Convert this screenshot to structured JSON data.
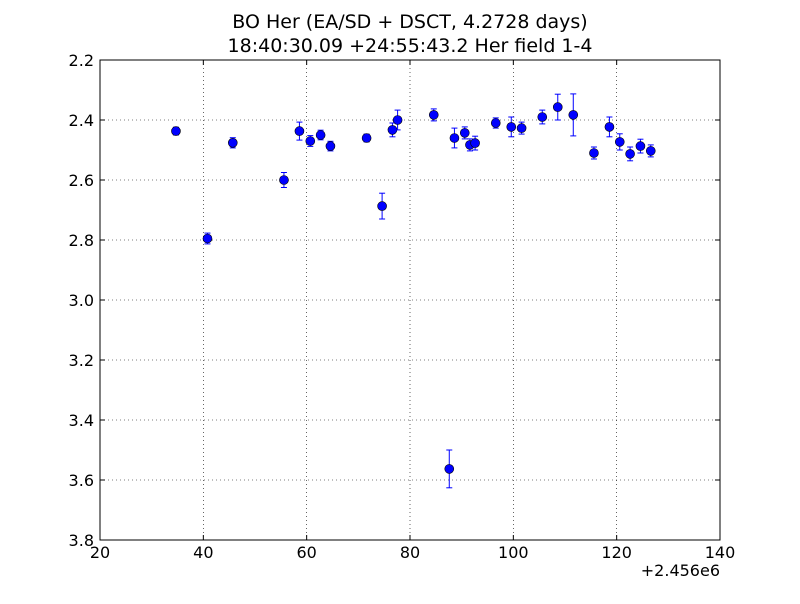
{
  "chart_data": {
    "type": "scatter",
    "title": "BO Her (EA/SD + DSCT, 4.2728 days)",
    "subtitle": "18:40:30.09 +24:55:43.2 Her field 1-4",
    "xlabel": "",
    "ylabel": "",
    "x_offset_label": "+2.456e6",
    "xlim": [
      20,
      140
    ],
    "ylim": [
      3.8,
      2.2
    ],
    "y_inverted": true,
    "grid": true,
    "marker_color": "#0000ff",
    "x_ticks": [
      "20",
      "40",
      "60",
      "80",
      "100",
      "120",
      "140"
    ],
    "y_ticks": [
      "2.2",
      "2.4",
      "2.6",
      "2.8",
      "3.0",
      "3.2",
      "3.4",
      "3.6",
      "3.8"
    ],
    "points": [
      {
        "x": 34.7,
        "y": 2.437,
        "err": 0.013
      },
      {
        "x": 40.8,
        "y": 2.795,
        "err": 0.018
      },
      {
        "x": 45.7,
        "y": 2.476,
        "err": 0.017
      },
      {
        "x": 55.6,
        "y": 2.6,
        "err": 0.025
      },
      {
        "x": 58.6,
        "y": 2.437,
        "err": 0.03
      },
      {
        "x": 60.7,
        "y": 2.47,
        "err": 0.018
      },
      {
        "x": 62.7,
        "y": 2.45,
        "err": 0.016
      },
      {
        "x": 64.6,
        "y": 2.487,
        "err": 0.016
      },
      {
        "x": 71.6,
        "y": 2.46,
        "err": 0.013
      },
      {
        "x": 74.6,
        "y": 2.687,
        "err": 0.043
      },
      {
        "x": 76.6,
        "y": 2.433,
        "err": 0.023
      },
      {
        "x": 77.6,
        "y": 2.4,
        "err": 0.033
      },
      {
        "x": 84.6,
        "y": 2.383,
        "err": 0.02
      },
      {
        "x": 87.6,
        "y": 3.563,
        "err": 0.063
      },
      {
        "x": 88.6,
        "y": 2.46,
        "err": 0.033
      },
      {
        "x": 90.6,
        "y": 2.443,
        "err": 0.02
      },
      {
        "x": 91.6,
        "y": 2.483,
        "err": 0.02
      },
      {
        "x": 92.6,
        "y": 2.477,
        "err": 0.023
      },
      {
        "x": 96.6,
        "y": 2.41,
        "err": 0.017
      },
      {
        "x": 99.6,
        "y": 2.423,
        "err": 0.033
      },
      {
        "x": 101.6,
        "y": 2.427,
        "err": 0.02
      },
      {
        "x": 105.6,
        "y": 2.39,
        "err": 0.023
      },
      {
        "x": 108.6,
        "y": 2.357,
        "err": 0.043
      },
      {
        "x": 111.6,
        "y": 2.383,
        "err": 0.07
      },
      {
        "x": 115.6,
        "y": 2.51,
        "err": 0.02
      },
      {
        "x": 118.6,
        "y": 2.423,
        "err": 0.033
      },
      {
        "x": 120.6,
        "y": 2.473,
        "err": 0.027
      },
      {
        "x": 122.6,
        "y": 2.513,
        "err": 0.023
      },
      {
        "x": 124.6,
        "y": 2.487,
        "err": 0.023
      },
      {
        "x": 126.6,
        "y": 2.503,
        "err": 0.02
      }
    ]
  }
}
